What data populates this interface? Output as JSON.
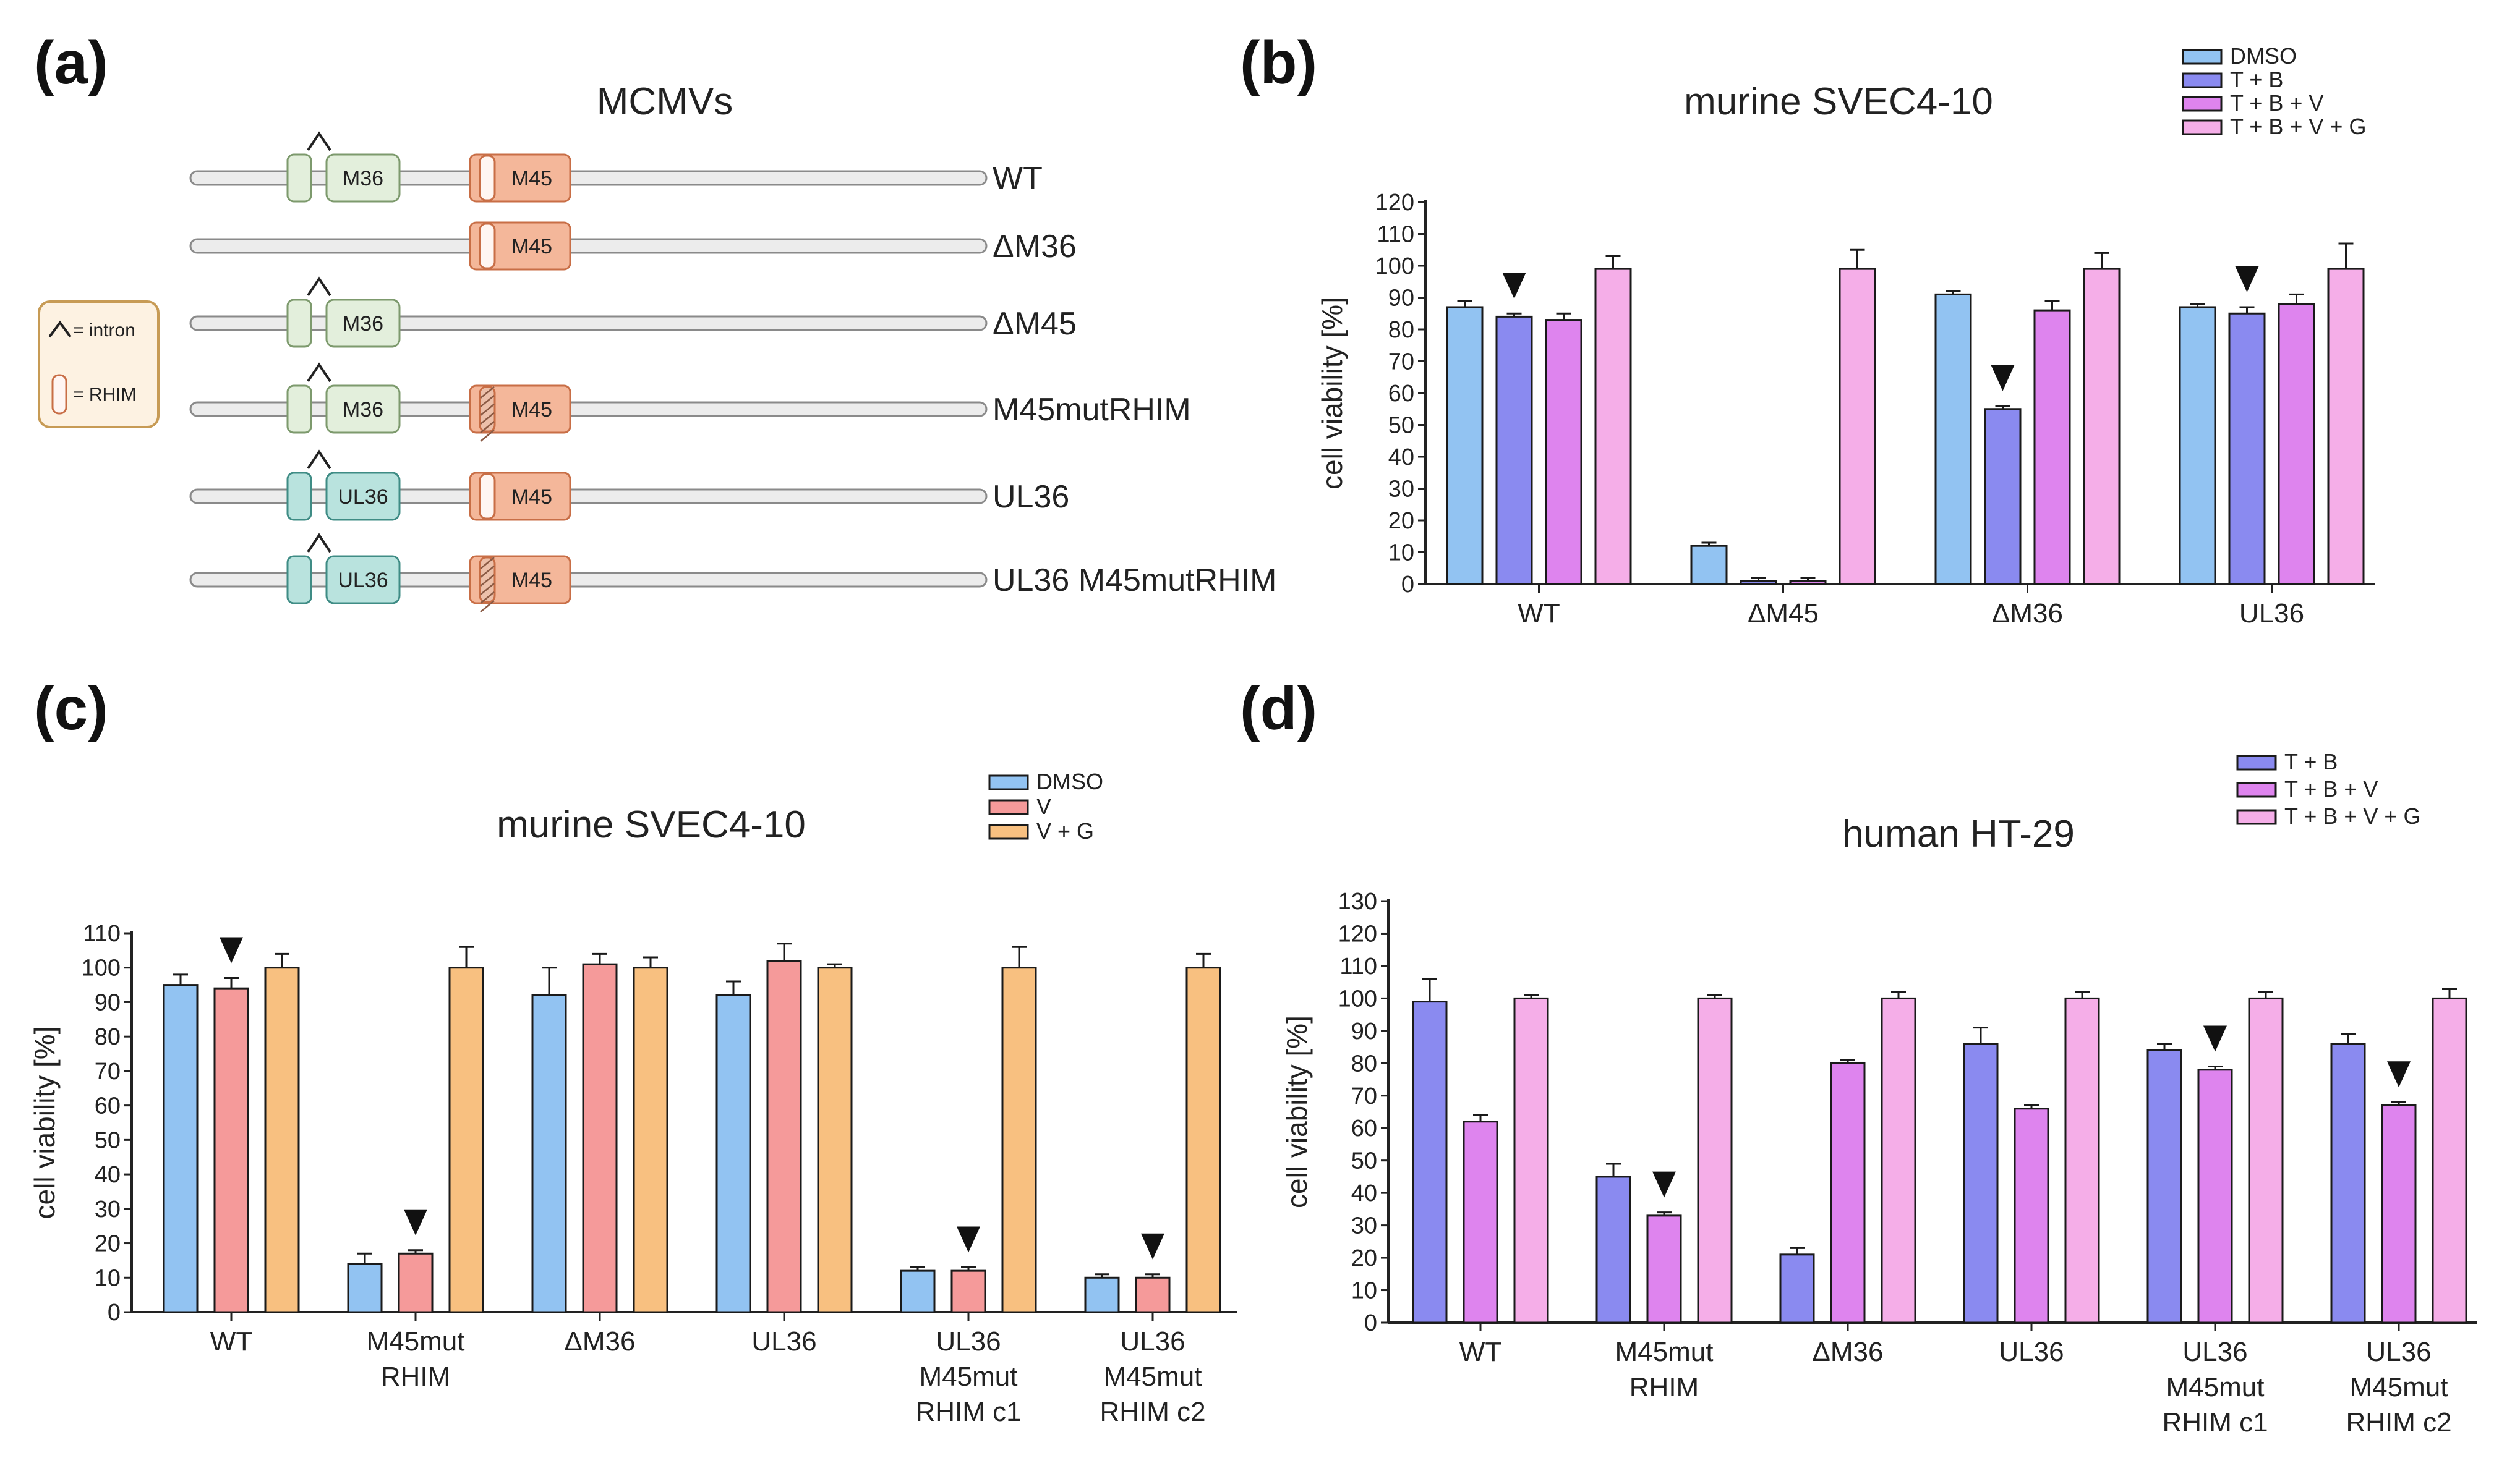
{
  "panels": {
    "a": "(a)",
    "b": "(b)",
    "c": "(c)",
    "d": "(d)"
  },
  "diagram": {
    "title": "MCMVs",
    "legend": {
      "intron": "= intron",
      "rhim": "= RHIM"
    },
    "constructs": [
      {
        "name": "WT",
        "gene1": "M36",
        "intron": true,
        "gene2": "M45",
        "rhim": "wt"
      },
      {
        "name": "ΔM36",
        "gene1": "",
        "intron": false,
        "gene2": "M45",
        "rhim": "wt"
      },
      {
        "name": "ΔM45",
        "gene1": "M36",
        "intron": true,
        "gene2": "",
        "rhim": ""
      },
      {
        "name": "M45mutRHIM",
        "gene1": "M36",
        "intron": true,
        "gene2": "M45",
        "rhim": "mut"
      },
      {
        "name": "UL36",
        "gene1": "UL36",
        "intron": true,
        "gene2": "M45",
        "rhim": "wt"
      },
      {
        "name": "UL36 M45mutRHIM",
        "gene1": "UL36",
        "intron": true,
        "gene2": "M45",
        "rhim": "mut"
      }
    ],
    "colors": {
      "m36": "#e3efdc",
      "m36_stroke": "#7d9a6d",
      "ul36": "#b9e3de",
      "ul36_stroke": "#3f8c85",
      "m45": "#f4b79a",
      "m45_stroke": "#c86e46",
      "legend_bg": "#fdf2e2",
      "legend_stroke": "#c79b55"
    }
  },
  "chart_data": [
    {
      "type": "bar",
      "title": "murine SVEC4-10",
      "ylabel": "cell viability [%]",
      "xlabel": "",
      "ylim": [
        0,
        120
      ],
      "yticks": [
        0,
        10,
        20,
        30,
        40,
        50,
        60,
        70,
        80,
        90,
        100,
        110,
        120
      ],
      "categories": [
        [
          "WT"
        ],
        [
          "ΔM45"
        ],
        [
          "ΔM36"
        ],
        [
          "UL36"
        ]
      ],
      "series": [
        {
          "name": "DMSO",
          "color": "#92c3f2",
          "values": [
            87,
            12,
            91,
            87
          ],
          "errors": [
            2,
            1,
            1,
            1
          ]
        },
        {
          "name": "T + B",
          "color": "#8a8af0",
          "values": [
            84,
            1,
            55,
            85
          ],
          "errors": [
            1,
            1,
            1,
            2
          ]
        },
        {
          "name": "T + B + V",
          "color": "#de84ee",
          "values": [
            83,
            1,
            86,
            88
          ],
          "errors": [
            2,
            1,
            3,
            3
          ]
        },
        {
          "name": "T + B + V + G",
          "color": "#f5aee8",
          "values": [
            99,
            99,
            99,
            99
          ],
          "errors": [
            4,
            6,
            5,
            8
          ]
        }
      ],
      "arrows": [
        [
          0,
          1
        ],
        [
          2,
          1
        ],
        [
          3,
          1
        ]
      ]
    },
    {
      "type": "bar",
      "title": "murine SVEC4-10",
      "ylabel": "cell viability [%]",
      "xlabel": "",
      "ylim": [
        0,
        110
      ],
      "yticks": [
        0,
        10,
        20,
        30,
        40,
        50,
        60,
        70,
        80,
        90,
        100,
        110
      ],
      "categories": [
        [
          "WT"
        ],
        [
          "M45mut",
          "RHIM"
        ],
        [
          "ΔM36"
        ],
        [
          "UL36"
        ],
        [
          "UL36",
          "M45mut",
          "RHIM c1"
        ],
        [
          "UL36",
          "M45mut",
          "RHIM c2"
        ]
      ],
      "series": [
        {
          "name": "DMSO",
          "color": "#92c3f2",
          "values": [
            95,
            14,
            92,
            92,
            12,
            10
          ],
          "errors": [
            3,
            3,
            8,
            4,
            1,
            1
          ]
        },
        {
          "name": "V",
          "color": "#f59a9a",
          "values": [
            94,
            17,
            101,
            102,
            12,
            10
          ],
          "errors": [
            3,
            1,
            3,
            5,
            1,
            1
          ]
        },
        {
          "name": "V + G",
          "color": "#f8c080",
          "values": [
            100,
            100,
            100,
            100,
            100,
            100
          ],
          "errors": [
            4,
            6,
            3,
            1,
            6,
            4
          ]
        }
      ],
      "arrows": [
        [
          0,
          1
        ],
        [
          1,
          1
        ],
        [
          4,
          1
        ],
        [
          5,
          1
        ]
      ]
    },
    {
      "type": "bar",
      "title": "human HT-29",
      "ylabel": "cell viability [%]",
      "xlabel": "",
      "ylim": [
        0,
        130
      ],
      "yticks": [
        0,
        10,
        20,
        30,
        40,
        50,
        60,
        70,
        80,
        90,
        100,
        110,
        120,
        130
      ],
      "categories": [
        [
          "WT"
        ],
        [
          "M45mut",
          "RHIM"
        ],
        [
          "ΔM36"
        ],
        [
          "UL36"
        ],
        [
          "UL36",
          "M45mut",
          "RHIM c1"
        ],
        [
          "UL36",
          "M45mut",
          "RHIM c2"
        ]
      ],
      "series": [
        {
          "name": "T + B",
          "color": "#8a8af0",
          "values": [
            99,
            45,
            21,
            86,
            84,
            86
          ],
          "errors": [
            7,
            4,
            2,
            5,
            2,
            3
          ]
        },
        {
          "name": "T + B + V",
          "color": "#de84ee",
          "values": [
            62,
            33,
            80,
            66,
            78,
            67
          ],
          "errors": [
            2,
            1,
            1,
            1,
            1,
            1
          ]
        },
        {
          "name": "T + B + V + G",
          "color": "#f5aee8",
          "values": [
            100,
            100,
            100,
            100,
            100,
            100
          ],
          "errors": [
            1,
            1,
            2,
            2,
            2,
            3
          ]
        }
      ],
      "arrows": [
        [
          1,
          1
        ],
        [
          4,
          1
        ],
        [
          5,
          1
        ]
      ]
    }
  ]
}
